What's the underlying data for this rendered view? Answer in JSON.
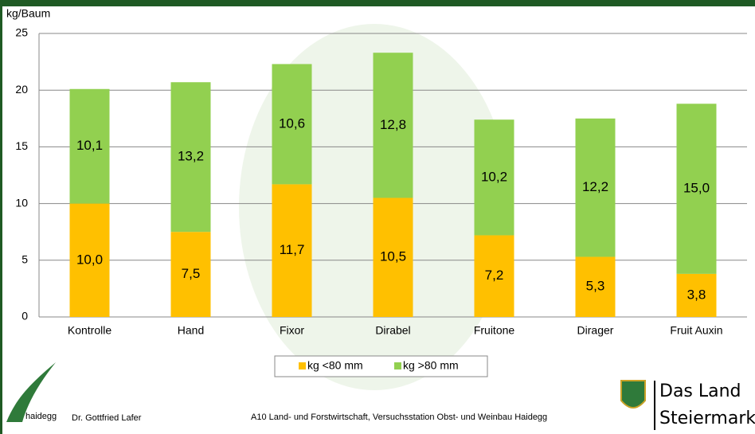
{
  "chart_data": {
    "type": "stacked_bar",
    "ylabel": "kg/Baum",
    "categories": [
      "Kontrolle",
      "Hand",
      "Fixor",
      "Dirabel",
      "Fruitone",
      "Dirager",
      "Fruit Auxin"
    ],
    "series": [
      {
        "name": "kg <80 mm",
        "color": "#ffc000",
        "values": [
          10.0,
          7.5,
          11.7,
          10.5,
          7.2,
          5.3,
          3.8
        ],
        "value_labels": [
          "10,0",
          "7,5",
          "11,7",
          "10,5",
          "7,2",
          "5,3",
          "3,8"
        ]
      },
      {
        "name": "kg >80 mm",
        "color": "#92d050",
        "values": [
          10.1,
          13.2,
          10.6,
          12.8,
          10.2,
          12.2,
          15.0
        ],
        "value_labels": [
          "10,1",
          "13,2",
          "10,6",
          "12,8",
          "10,2",
          "12,2",
          "15,0"
        ]
      }
    ],
    "ylim": [
      0,
      25
    ],
    "yticks": [
      0,
      5,
      10,
      15,
      20,
      25
    ],
    "grid": true,
    "legend": "bottom"
  },
  "footer": {
    "logo": "haidegg",
    "author": "Dr. Gottfried Lafer",
    "institution": "A10 Land- und Forstwirtschaft, Versuchsstation Obst- und Weinbau Haidegg",
    "brand_line1": "Das Land",
    "brand_line2": "Steiermark"
  }
}
